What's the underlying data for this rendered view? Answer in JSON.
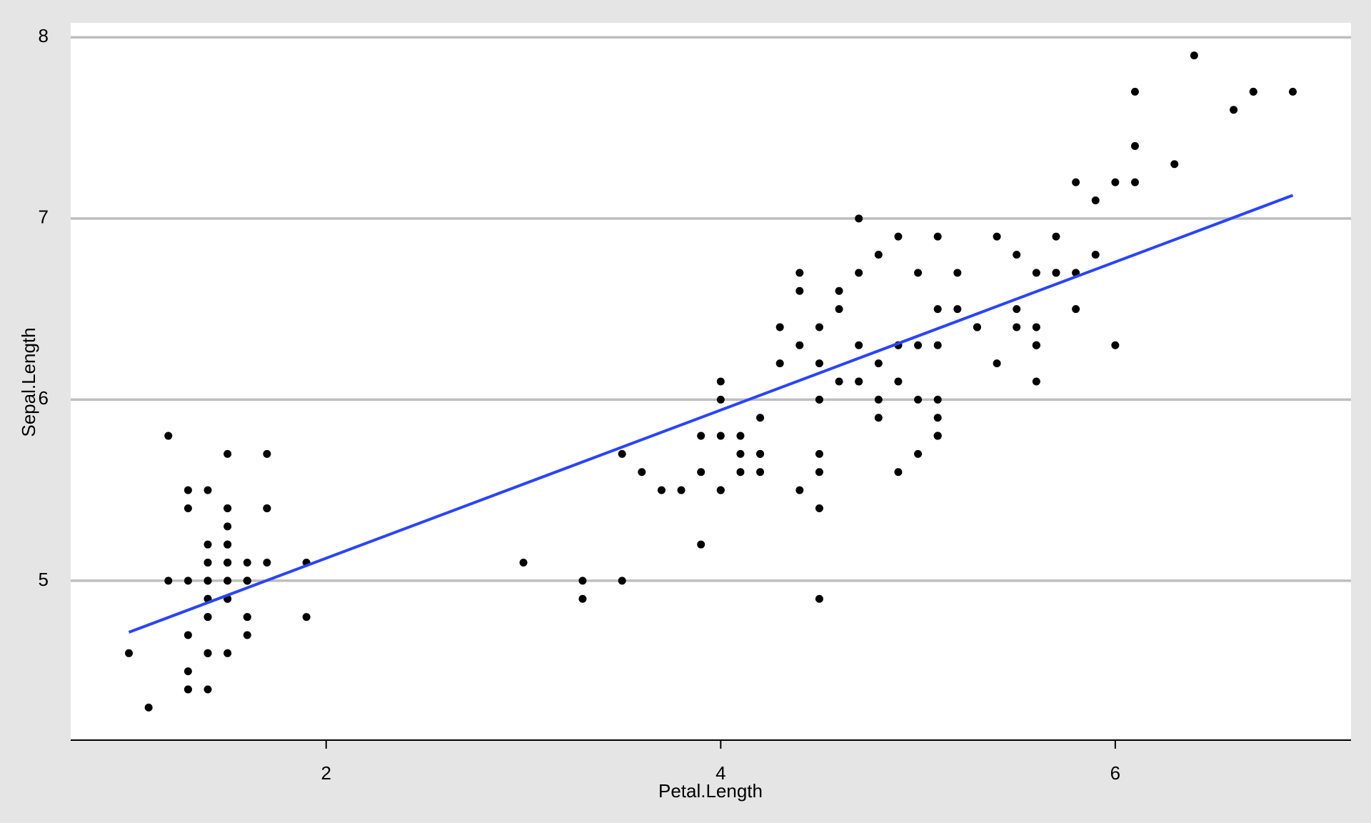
{
  "chart_data": {
    "type": "scatter",
    "xlabel": "Petal.Length",
    "ylabel": "Sepal.Length",
    "x": [
      1.4,
      1.4,
      1.3,
      1.5,
      1.4,
      1.7,
      1.4,
      1.5,
      1.4,
      1.5,
      1.5,
      1.6,
      1.4,
      1.1,
      1.2,
      1.5,
      1.3,
      1.4,
      1.7,
      1.5,
      1.7,
      1.5,
      1.0,
      1.7,
      1.9,
      1.6,
      1.6,
      1.5,
      1.4,
      1.6,
      1.6,
      1.5,
      1.5,
      1.4,
      1.5,
      1.2,
      1.3,
      1.4,
      1.3,
      1.5,
      1.3,
      1.3,
      1.3,
      1.6,
      1.9,
      1.4,
      1.6,
      1.4,
      1.5,
      1.4,
      4.7,
      4.5,
      4.9,
      4.0,
      4.6,
      4.5,
      4.7,
      3.3,
      4.6,
      3.9,
      3.5,
      4.2,
      4.0,
      4.7,
      3.6,
      4.4,
      4.5,
      4.1,
      4.5,
      3.9,
      4.8,
      4.0,
      4.9,
      4.7,
      4.3,
      4.4,
      4.8,
      5.0,
      4.5,
      3.5,
      3.8,
      3.7,
      3.9,
      5.1,
      4.5,
      4.5,
      4.7,
      4.4,
      4.1,
      4.0,
      4.4,
      4.6,
      4.0,
      3.3,
      4.2,
      4.2,
      4.2,
      4.3,
      3.0,
      4.1,
      6.0,
      5.1,
      5.9,
      5.6,
      5.8,
      6.6,
      4.5,
      6.3,
      5.8,
      6.1,
      5.1,
      5.3,
      5.5,
      5.0,
      5.1,
      5.3,
      5.5,
      6.7,
      6.9,
      5.0,
      5.7,
      4.9,
      6.7,
      4.9,
      5.7,
      6.0,
      4.8,
      4.9,
      5.6,
      5.8,
      6.1,
      6.4,
      5.6,
      5.1,
      5.6,
      6.1,
      5.6,
      5.5,
      4.8,
      5.4,
      5.6,
      5.1,
      5.1,
      5.9,
      5.7,
      5.2,
      5.0,
      5.2,
      5.4,
      5.1
    ],
    "values": [
      5.1,
      4.9,
      4.7,
      4.6,
      5.0,
      5.4,
      4.6,
      5.0,
      4.4,
      4.9,
      5.4,
      4.8,
      4.8,
      4.3,
      5.8,
      5.7,
      5.4,
      5.1,
      5.7,
      5.1,
      5.4,
      5.1,
      4.6,
      5.1,
      4.8,
      5.0,
      5.0,
      5.2,
      5.2,
      4.7,
      4.8,
      5.4,
      5.2,
      5.5,
      4.9,
      5.0,
      5.5,
      4.9,
      4.4,
      5.1,
      5.0,
      4.5,
      4.4,
      5.0,
      5.1,
      4.8,
      5.1,
      4.6,
      5.3,
      5.0,
      7.0,
      6.4,
      6.9,
      5.5,
      6.5,
      5.7,
      6.3,
      4.9,
      6.6,
      5.2,
      5.0,
      5.9,
      6.0,
      6.1,
      5.6,
      6.7,
      5.6,
      5.8,
      6.2,
      5.6,
      5.9,
      6.1,
      6.3,
      6.1,
      6.4,
      6.6,
      6.8,
      6.7,
      6.0,
      5.7,
      5.5,
      5.5,
      5.8,
      6.0,
      5.4,
      6.0,
      6.7,
      6.3,
      5.6,
      5.5,
      5.5,
      6.1,
      5.8,
      5.0,
      5.6,
      5.7,
      5.7,
      6.2,
      5.1,
      5.7,
      6.3,
      5.8,
      7.1,
      6.3,
      6.5,
      7.6,
      4.9,
      7.3,
      6.7,
      7.2,
      6.5,
      6.4,
      6.8,
      5.7,
      5.8,
      6.4,
      6.5,
      7.7,
      7.7,
      6.0,
      6.9,
      5.6,
      7.7,
      6.3,
      6.7,
      7.2,
      6.2,
      6.1,
      6.4,
      7.2,
      7.4,
      7.9,
      6.3,
      6.3,
      6.1,
      7.7,
      6.3,
      6.4,
      6.0,
      6.9,
      6.7,
      6.9,
      5.8,
      6.8,
      6.7,
      6.7,
      6.3,
      6.5,
      6.2,
      5.9
    ],
    "color": "#000000",
    "fit": {
      "x": [
        1.0,
        6.9
      ],
      "values": [
        4.7155,
        7.128
      ],
      "color": "#2b45f2"
    },
    "xlim": [
      0.705,
      7.195
    ],
    "ylim": [
      4.12,
      8.08
    ],
    "xticks": [
      2,
      4,
      6
    ],
    "yticks": [
      5,
      6,
      7,
      8
    ],
    "grid": true
  }
}
